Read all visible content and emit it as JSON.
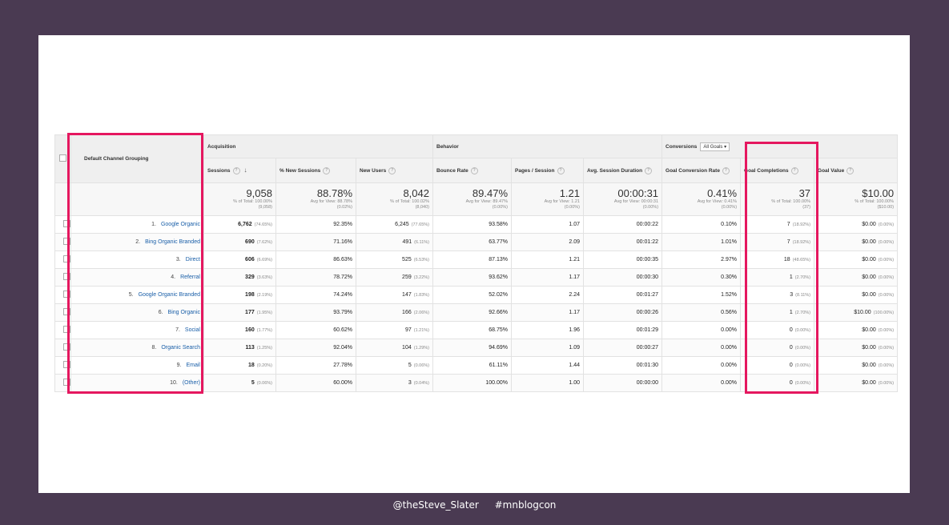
{
  "footer": {
    "handle": "@theSteve_Slater",
    "hashtag": "#mnblogcon"
  },
  "colors": {
    "frame": "#4a3a52",
    "highlight": "#e5175f",
    "link": "#1a5fa8"
  },
  "table": {
    "dimension_header": "Default Channel Grouping",
    "groups": {
      "acquisition": "Acquisition",
      "behavior": "Behavior",
      "conversions": "Conversions",
      "goal_select": "All Goals"
    },
    "metrics": [
      "Sessions",
      "% New Sessions",
      "New Users",
      "Bounce Rate",
      "Pages / Session",
      "Avg. Session Duration",
      "Goal Conversion Rate",
      "Goal Completions",
      "Goal Value"
    ],
    "totals": [
      {
        "value": "9,058",
        "sub1": "% of Total: 100.00%",
        "sub2": "(9,058)"
      },
      {
        "value": "88.78%",
        "sub1": "Avg for View: 88.78%",
        "sub2": "(0.02%)"
      },
      {
        "value": "8,042",
        "sub1": "% of Total: 100.02%",
        "sub2": "(8,040)"
      },
      {
        "value": "89.47%",
        "sub1": "Avg for View: 89.47%",
        "sub2": "(0.00%)"
      },
      {
        "value": "1.21",
        "sub1": "Avg for View: 1.21",
        "sub2": "(0.00%)"
      },
      {
        "value": "00:00:31",
        "sub1": "Avg for View: 00:00:31",
        "sub2": "(0.00%)"
      },
      {
        "value": "0.41%",
        "sub1": "Avg for View: 0.41%",
        "sub2": "(0.00%)"
      },
      {
        "value": "37",
        "sub1": "% of Total: 100.00%",
        "sub2": "(37)"
      },
      {
        "value": "$10.00",
        "sub1": "% of Total: 100.00%",
        "sub2": "($10.00)"
      }
    ],
    "rows": [
      {
        "num": "1.",
        "channel": "Google Organic",
        "sessions": "6,762",
        "sessions_pct": "(74.65%)",
        "new_sessions": "92.35%",
        "new_users": "6,245",
        "new_users_pct": "(77.65%)",
        "bounce": "93.58%",
        "pages": "1.07",
        "duration": "00:00:22",
        "conv_rate": "0.10%",
        "completions": "7",
        "completions_pct": "(18.92%)",
        "value": "$0.00",
        "value_pct": "(0.00%)"
      },
      {
        "num": "2.",
        "channel": "Bing Organic Branded",
        "sessions": "690",
        "sessions_pct": "(7.62%)",
        "new_sessions": "71.16%",
        "new_users": "491",
        "new_users_pct": "(6.11%)",
        "bounce": "63.77%",
        "pages": "2.09",
        "duration": "00:01:22",
        "conv_rate": "1.01%",
        "completions": "7",
        "completions_pct": "(18.92%)",
        "value": "$0.00",
        "value_pct": "(0.00%)"
      },
      {
        "num": "3.",
        "channel": "Direct",
        "sessions": "606",
        "sessions_pct": "(6.69%)",
        "new_sessions": "86.63%",
        "new_users": "525",
        "new_users_pct": "(6.53%)",
        "bounce": "87.13%",
        "pages": "1.21",
        "duration": "00:00:35",
        "conv_rate": "2.97%",
        "completions": "18",
        "completions_pct": "(48.65%)",
        "value": "$0.00",
        "value_pct": "(0.00%)"
      },
      {
        "num": "4.",
        "channel": "Referral",
        "sessions": "329",
        "sessions_pct": "(3.63%)",
        "new_sessions": "78.72%",
        "new_users": "259",
        "new_users_pct": "(3.22%)",
        "bounce": "93.62%",
        "pages": "1.17",
        "duration": "00:00:30",
        "conv_rate": "0.30%",
        "completions": "1",
        "completions_pct": "(2.70%)",
        "value": "$0.00",
        "value_pct": "(0.00%)"
      },
      {
        "num": "5.",
        "channel": "Google Organic Branded",
        "sessions": "198",
        "sessions_pct": "(2.19%)",
        "new_sessions": "74.24%",
        "new_users": "147",
        "new_users_pct": "(1.83%)",
        "bounce": "52.02%",
        "pages": "2.24",
        "duration": "00:01:27",
        "conv_rate": "1.52%",
        "completions": "3",
        "completions_pct": "(8.11%)",
        "value": "$0.00",
        "value_pct": "(0.00%)"
      },
      {
        "num": "6.",
        "channel": "Bing Organic",
        "sessions": "177",
        "sessions_pct": "(1.95%)",
        "new_sessions": "93.79%",
        "new_users": "166",
        "new_users_pct": "(2.06%)",
        "bounce": "92.66%",
        "pages": "1.17",
        "duration": "00:00:26",
        "conv_rate": "0.56%",
        "completions": "1",
        "completions_pct": "(2.70%)",
        "value": "$10.00",
        "value_pct": "(100.00%)"
      },
      {
        "num": "7.",
        "channel": "Social",
        "sessions": "160",
        "sessions_pct": "(1.77%)",
        "new_sessions": "60.62%",
        "new_users": "97",
        "new_users_pct": "(1.21%)",
        "bounce": "68.75%",
        "pages": "1.96",
        "duration": "00:01:29",
        "conv_rate": "0.00%",
        "completions": "0",
        "completions_pct": "(0.00%)",
        "value": "$0.00",
        "value_pct": "(0.00%)"
      },
      {
        "num": "8.",
        "channel": "Organic Search",
        "sessions": "113",
        "sessions_pct": "(1.25%)",
        "new_sessions": "92.04%",
        "new_users": "104",
        "new_users_pct": "(1.29%)",
        "bounce": "94.69%",
        "pages": "1.09",
        "duration": "00:00:27",
        "conv_rate": "0.00%",
        "completions": "0",
        "completions_pct": "(0.00%)",
        "value": "$0.00",
        "value_pct": "(0.00%)"
      },
      {
        "num": "9.",
        "channel": "Email",
        "sessions": "18",
        "sessions_pct": "(0.20%)",
        "new_sessions": "27.78%",
        "new_users": "5",
        "new_users_pct": "(0.06%)",
        "bounce": "61.11%",
        "pages": "1.44",
        "duration": "00:01:30",
        "conv_rate": "0.00%",
        "completions": "0",
        "completions_pct": "(0.00%)",
        "value": "$0.00",
        "value_pct": "(0.00%)"
      },
      {
        "num": "10.",
        "channel": "(Other)",
        "sessions": "5",
        "sessions_pct": "(0.06%)",
        "new_sessions": "60.00%",
        "new_users": "3",
        "new_users_pct": "(0.04%)",
        "bounce": "100.00%",
        "pages": "1.00",
        "duration": "00:00:00",
        "conv_rate": "0.00%",
        "completions": "0",
        "completions_pct": "(0.00%)",
        "value": "$0.00",
        "value_pct": "(0.00%)"
      }
    ]
  }
}
